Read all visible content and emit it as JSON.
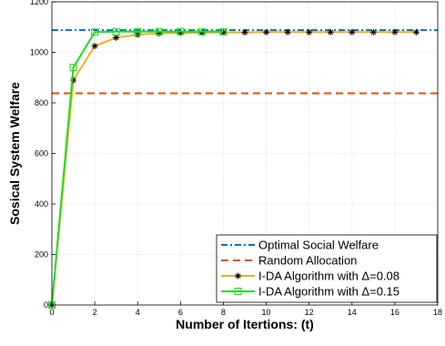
{
  "chart_data": {
    "type": "line",
    "title": "",
    "xlabel": "Number of Itertions: (t)",
    "ylabel": "Sosical System Welfare",
    "xlim": [
      0,
      18
    ],
    "ylim": [
      0,
      1200
    ],
    "xticks": [
      0,
      2,
      4,
      6,
      8,
      10,
      12,
      14,
      16,
      18
    ],
    "yticks": [
      0,
      200,
      400,
      600,
      800,
      1000,
      1200
    ],
    "grid": true,
    "legend_position": "bottom-right",
    "series": [
      {
        "name": "Optimal Social Welfare",
        "kind": "hline",
        "y": 1088,
        "color": "#0072BD",
        "line_style": "dash-dot"
      },
      {
        "name": "Random Allocation",
        "kind": "hline",
        "y": 838,
        "color": "#D95319",
        "line_style": "dashed"
      },
      {
        "name": "I-DA Algorithm with Δ=0.08",
        "kind": "line",
        "color": "#EDB120",
        "marker": "asterisk",
        "x": [
          0,
          1,
          2,
          3,
          4,
          5,
          6,
          7,
          8,
          9,
          10,
          11,
          12,
          13,
          14,
          15,
          16,
          17
        ],
        "values": [
          0,
          890,
          1025,
          1058,
          1070,
          1075,
          1077,
          1078,
          1079,
          1079,
          1080,
          1080,
          1080,
          1080,
          1080,
          1080,
          1080,
          1080
        ]
      },
      {
        "name": "I-DA Algorithm with Δ=0.15",
        "kind": "line",
        "color": "#22DD22",
        "marker": "square",
        "x": [
          0,
          1,
          2,
          3,
          4,
          5,
          6,
          7,
          8
        ],
        "values": [
          0,
          940,
          1080,
          1082,
          1082,
          1082,
          1082,
          1082,
          1082
        ]
      }
    ]
  }
}
